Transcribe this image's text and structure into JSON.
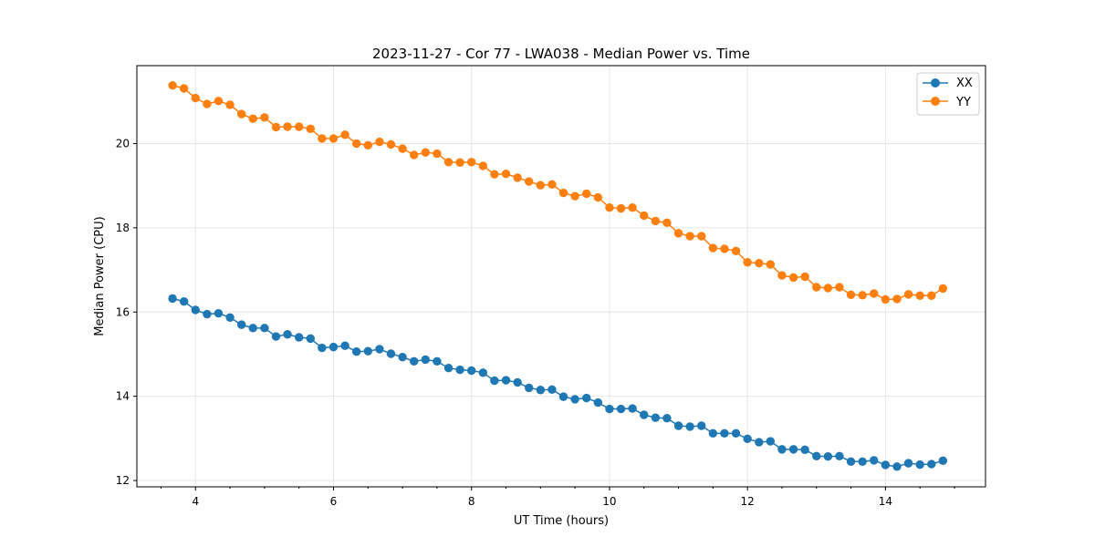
{
  "chart_data": {
    "type": "line",
    "title": "2023-11-27 - Cor 77 - LWA038 - Median Power vs. Time",
    "xlabel": "UT Time (hours)",
    "ylabel": "Median Power (CPU)",
    "xlim": [
      3.15,
      15.45
    ],
    "ylim": [
      11.85,
      21.85
    ],
    "xticks": [
      4,
      6,
      8,
      10,
      12,
      14
    ],
    "yticks": [
      12,
      14,
      16,
      18,
      20
    ],
    "grid": true,
    "legend_position": "top-right",
    "x": [
      3.667,
      3.833,
      4.0,
      4.167,
      4.333,
      4.5,
      4.667,
      4.833,
      5.0,
      5.167,
      5.333,
      5.5,
      5.667,
      5.833,
      6.0,
      6.167,
      6.333,
      6.5,
      6.667,
      6.833,
      7.0,
      7.167,
      7.333,
      7.5,
      7.667,
      7.833,
      8.0,
      8.167,
      8.333,
      8.5,
      8.667,
      8.833,
      9.0,
      9.167,
      9.333,
      9.5,
      9.667,
      9.833,
      10.0,
      10.167,
      10.333,
      10.5,
      10.667,
      10.833,
      11.0,
      11.167,
      11.333,
      11.5,
      11.667,
      11.833,
      12.0,
      12.167,
      12.333,
      12.5,
      12.667,
      12.833,
      13.0,
      13.167,
      13.333,
      13.5,
      13.667,
      13.833,
      14.0,
      14.167,
      14.333,
      14.5,
      14.667,
      14.833
    ],
    "series": [
      {
        "name": "XX",
        "color": "#1f77b4",
        "values": [
          16.32,
          16.25,
          16.05,
          15.95,
          15.97,
          15.87,
          15.7,
          15.62,
          15.62,
          15.42,
          15.47,
          15.4,
          15.37,
          15.15,
          15.17,
          15.2,
          15.06,
          15.07,
          15.12,
          15.01,
          14.93,
          14.83,
          14.87,
          14.83,
          14.67,
          14.63,
          14.61,
          14.56,
          14.37,
          14.38,
          14.33,
          14.2,
          14.15,
          14.16,
          13.99,
          13.93,
          13.96,
          13.85,
          13.7,
          13.7,
          13.71,
          13.56,
          13.49,
          13.48,
          13.3,
          13.28,
          13.3,
          13.12,
          13.12,
          13.12,
          12.99,
          12.91,
          12.93,
          12.74,
          12.74,
          12.73,
          12.58,
          12.57,
          12.58,
          12.45,
          12.45,
          12.48,
          12.37,
          12.33,
          12.41,
          12.38,
          12.39,
          12.47
        ]
      },
      {
        "name": "YY",
        "color": "#ff7f0e",
        "values": [
          21.38,
          21.31,
          21.08,
          20.94,
          21.01,
          20.92,
          20.7,
          20.59,
          20.62,
          20.39,
          20.4,
          20.4,
          20.35,
          20.12,
          20.12,
          20.21,
          20.0,
          19.96,
          20.04,
          19.98,
          19.88,
          19.73,
          19.79,
          19.76,
          19.56,
          19.55,
          19.56,
          19.47,
          19.27,
          19.28,
          19.19,
          19.1,
          19.01,
          19.03,
          18.83,
          18.75,
          18.81,
          18.72,
          18.48,
          18.46,
          18.48,
          18.29,
          18.16,
          18.12,
          17.87,
          17.8,
          17.8,
          17.52,
          17.5,
          17.45,
          17.18,
          17.16,
          17.13,
          16.87,
          16.82,
          16.84,
          16.59,
          16.57,
          16.59,
          16.41,
          16.4,
          16.44,
          16.3,
          16.31,
          16.42,
          16.39,
          16.39,
          16.56
        ]
      }
    ]
  }
}
